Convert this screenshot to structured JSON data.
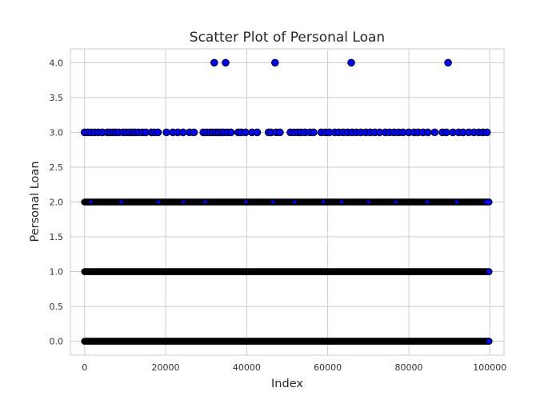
{
  "chart_data": {
    "type": "scatter",
    "title": "Scatter Plot of Personal Loan",
    "xlabel": "Index",
    "ylabel": "Personal Loan",
    "xlim": [
      -3500,
      103500
    ],
    "ylim": [
      -0.2,
      4.2
    ],
    "grid": true,
    "x_ticks": [
      0,
      20000,
      40000,
      60000,
      80000,
      100000
    ],
    "x_tick_labels": [
      "0",
      "20000",
      "40000",
      "60000",
      "80000",
      "100000"
    ],
    "y_ticks": [
      0.0,
      0.5,
      1.0,
      1.5,
      2.0,
      2.5,
      3.0,
      3.5,
      4.0
    ],
    "y_tick_labels": [
      "0.0",
      "0.5",
      "1.0",
      "1.5",
      "2.0",
      "2.5",
      "3.0",
      "3.5",
      "4.0"
    ],
    "marker_color": "#0000ff",
    "marker_edge_color": "#000000",
    "series": [
      {
        "values_y": 4.0,
        "x": [
          32000,
          34800,
          47000,
          65800,
          89700
        ]
      },
      {
        "values_y": 3.0,
        "x": [
          0,
          800,
          1600,
          2500,
          3400,
          4400,
          5600,
          6300,
          7000,
          7600,
          8400,
          9500,
          10300,
          11100,
          11800,
          12500,
          13300,
          14300,
          15100,
          16500,
          17200,
          18100,
          20200,
          21800,
          23000,
          24300,
          25900,
          27000,
          29300,
          30100,
          31000,
          31700,
          32400,
          33000,
          33700,
          34300,
          35200,
          36100,
          37900,
          38600,
          39700,
          41300,
          42600,
          45400,
          46000,
          47300,
          48200,
          50800,
          51700,
          52600,
          53400,
          54400,
          55600,
          56500,
          58400,
          59500,
          60400,
          61700,
          62700,
          63800,
          64900,
          66000,
          67100,
          68200,
          69400,
          70500,
          71600,
          72800,
          74200,
          75300,
          76400,
          77500,
          78600,
          80000,
          81300,
          82300,
          83500,
          84700,
          86400,
          88300,
          89300,
          90900,
          92300,
          93400,
          94800,
          96100,
          97300,
          98300,
          99300
        ]
      }
    ],
    "dense_bands": [
      {
        "y": 2.0,
        "x_start": 0,
        "x_end": 99800
      },
      {
        "y": 1.0,
        "x_start": 0,
        "x_end": 99800
      },
      {
        "y": 0.0,
        "x_start": 0,
        "x_end": 99800
      }
    ]
  }
}
